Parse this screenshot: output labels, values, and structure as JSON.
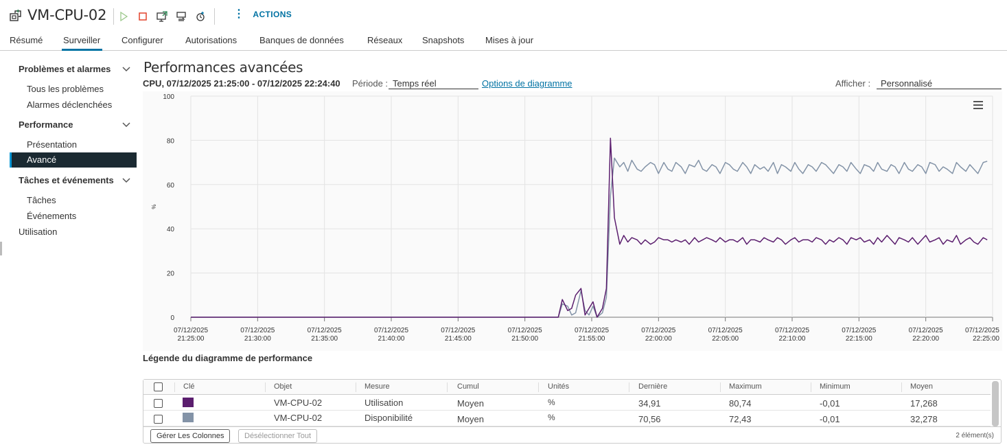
{
  "header": {
    "vm_name": "VM-CPU-02",
    "actions_label": "ACTIONS",
    "toolbar_icons": [
      "power-on-icon",
      "power-off-icon",
      "launch-console-icon",
      "migrate-icon",
      "snapshot-icon"
    ]
  },
  "tabs": [
    {
      "label": "Résumé"
    },
    {
      "label": "Surveiller",
      "active": true
    },
    {
      "label": "Configurer"
    },
    {
      "label": "Autorisations"
    },
    {
      "label": "Banques de données"
    },
    {
      "label": "Réseaux"
    },
    {
      "label": "Snapshots"
    },
    {
      "label": "Mises à jour"
    }
  ],
  "sidebar": {
    "groups": [
      {
        "label": "Problèmes et alarmes",
        "items": [
          "Tous les problèmes",
          "Alarmes déclenchées"
        ]
      },
      {
        "label": "Performance",
        "items": [
          "Présentation",
          "Avancé"
        ],
        "active_item": "Avancé"
      },
      {
        "label": "Tâches et événements",
        "items": [
          "Tâches",
          "Événements"
        ]
      }
    ],
    "plain_item": "Utilisation"
  },
  "main": {
    "title": "Performances avancées",
    "range": "CPU, 07/12/2025 21:25:00 - 07/12/2025 22:24:40",
    "periode_label": "Période :",
    "periode_value": "Temps réel",
    "options_link": "Options de diagramme",
    "afficher_label": "Afficher :",
    "afficher_value": "Personnalisé"
  },
  "chart_data": {
    "type": "line",
    "ylabel": "%",
    "ylim": [
      0,
      100
    ],
    "yticks": [
      "0",
      "20",
      "40",
      "60",
      "80",
      "100"
    ],
    "xticks": [
      [
        "07/12/2025",
        "21:25:00"
      ],
      [
        "07/12/2025",
        "21:30:00"
      ],
      [
        "07/12/2025",
        "21:35:00"
      ],
      [
        "07/12/2025",
        "21:40:00"
      ],
      [
        "07/12/2025",
        "21:45:00"
      ],
      [
        "07/12/2025",
        "21:50:00"
      ],
      [
        "07/12/2025",
        "21:55:00"
      ],
      [
        "07/12/2025",
        "22:00:00"
      ],
      [
        "07/12/2025",
        "22:05:00"
      ],
      [
        "07/12/2025",
        "22:10:00"
      ],
      [
        "07/12/2025",
        "22:15:00"
      ],
      [
        "07/12/2025",
        "22:20:00"
      ],
      [
        "07/12/2025",
        "22:25:00"
      ]
    ],
    "x_minutes_range": [
      0,
      60
    ],
    "series": [
      {
        "name": "Utilisation",
        "color": "#5b1e6e",
        "x": [
          0,
          27.5,
          27.8,
          28.2,
          28.5,
          28.8,
          29.2,
          29.5,
          29.8,
          30.1,
          30.4,
          30.8,
          31.1,
          31.4,
          31.7,
          32.1,
          32.4,
          32.7,
          33.0,
          33.4,
          33.7,
          34.0,
          34.4,
          34.7,
          35.0,
          35.4,
          35.7,
          36.0,
          36.3,
          36.7,
          37.0,
          37.3,
          37.7,
          38.0,
          38.3,
          38.6,
          39.0,
          39.3,
          39.6,
          40.0,
          40.3,
          40.6,
          40.9,
          41.3,
          41.6,
          41.9,
          42.2,
          42.6,
          42.9,
          43.2,
          43.6,
          43.9,
          44.2,
          44.5,
          44.9,
          45.2,
          45.5,
          45.8,
          46.2,
          46.5,
          46.8,
          47.2,
          47.5,
          47.8,
          48.1,
          48.5,
          48.8,
          49.1,
          49.4,
          49.8,
          50.1,
          50.4,
          50.8,
          51.1,
          51.4,
          51.7,
          52.1,
          52.4,
          52.7,
          53.0,
          53.4,
          53.7,
          54.0,
          54.4,
          54.7,
          55.0,
          55.3,
          55.7,
          56.0,
          56.3,
          56.6,
          57.0,
          57.3,
          57.6,
          58.0,
          58.3,
          58.6,
          58.9,
          59.3,
          59.6
        ],
        "values": [
          0,
          0,
          8,
          3,
          4,
          10,
          13,
          1,
          4,
          7,
          0,
          4,
          13,
          81,
          45,
          33,
          37,
          34,
          36,
          35,
          33,
          35,
          33,
          34,
          36,
          35,
          35,
          34,
          35,
          34,
          35,
          33,
          36,
          34,
          35,
          36,
          35,
          34,
          36,
          34,
          35,
          35,
          34,
          36,
          33,
          35,
          35,
          34,
          36,
          35,
          34,
          36,
          35,
          33,
          35,
          36,
          34,
          35,
          35,
          34,
          36,
          35,
          33,
          35,
          34,
          36,
          35,
          33,
          36,
          35,
          36,
          34,
          35,
          33,
          36,
          34,
          37,
          35,
          33,
          36,
          35,
          34,
          36,
          33,
          35,
          37,
          34,
          35,
          36,
          33,
          35,
          34,
          37,
          33,
          35,
          36,
          34,
          33,
          36,
          35
        ]
      },
      {
        "name": "Disponibilité",
        "color": "#8393a7",
        "x": [
          0,
          27.5,
          27.8,
          28.2,
          28.5,
          28.8,
          29.2,
          29.5,
          29.8,
          30.1,
          30.4,
          30.8,
          31.1,
          31.4,
          31.7,
          32.1,
          32.4,
          32.7,
          33.0,
          33.4,
          33.7,
          34.0,
          34.4,
          34.7,
          35.0,
          35.4,
          35.7,
          36.0,
          36.3,
          36.7,
          37.0,
          37.3,
          37.7,
          38.0,
          38.3,
          38.6,
          39.0,
          39.3,
          39.6,
          40.0,
          40.3,
          40.6,
          40.9,
          41.3,
          41.6,
          41.9,
          42.2,
          42.6,
          42.9,
          43.2,
          43.6,
          43.9,
          44.2,
          44.5,
          44.9,
          45.2,
          45.5,
          45.8,
          46.2,
          46.5,
          46.8,
          47.2,
          47.5,
          47.8,
          48.1,
          48.5,
          48.8,
          49.1,
          49.4,
          49.8,
          50.1,
          50.4,
          50.8,
          51.1,
          51.4,
          51.7,
          52.1,
          52.4,
          52.7,
          53.0,
          53.4,
          53.7,
          54.0,
          54.4,
          54.7,
          55.0,
          55.3,
          55.7,
          56.0,
          56.3,
          56.6,
          57.0,
          57.3,
          57.6,
          58.0,
          58.3,
          58.6,
          58.9,
          59.3,
          59.6
        ],
        "values": [
          0,
          0,
          6,
          5,
          1,
          2,
          12,
          3,
          1,
          5,
          0,
          2,
          9,
          55,
          72,
          68,
          70,
          66,
          71,
          67,
          66,
          68,
          70,
          69,
          65,
          70,
          67,
          66,
          70,
          68,
          65,
          69,
          68,
          71,
          67,
          66,
          69,
          68,
          65,
          70,
          69,
          67,
          66,
          70,
          68,
          65,
          69,
          67,
          68,
          66,
          70,
          65,
          69,
          68,
          66,
          70,
          67,
          65,
          69,
          68,
          66,
          70,
          69,
          67,
          65,
          69,
          68,
          66,
          70,
          67,
          65,
          69,
          68,
          66,
          70,
          67,
          66,
          69,
          68,
          65,
          70,
          67,
          66,
          69,
          68,
          65,
          70,
          69,
          66,
          68,
          67,
          65,
          70,
          68,
          66,
          69,
          67,
          65,
          70,
          70.56
        ]
      }
    ]
  },
  "legend": {
    "title": "Légende du diagramme de performance",
    "columns": [
      "Clé",
      "Objet",
      "Mesure",
      "Cumul",
      "Unités",
      "Dernière",
      "Maximum",
      "Minimum",
      "Moyen"
    ],
    "rows": [
      {
        "color": "#5b1e6e",
        "objet": "VM-CPU-02",
        "mesure": "Utilisation",
        "cumul": "Moyen",
        "unites": "%",
        "derniere": "34,91",
        "maximum": "80,74",
        "minimum": "-0,01",
        "moyen": "17,268"
      },
      {
        "color": "#8393a7",
        "objet": "VM-CPU-02",
        "mesure": "Disponibilité",
        "cumul": "Moyen",
        "unites": "%",
        "derniere": "70,56",
        "maximum": "72,43",
        "minimum": "-0,01",
        "moyen": "32,278"
      }
    ],
    "btn_manage": "Gérer Les Colonnes",
    "btn_deselect": "Désélectionner Tout",
    "count": "2 élément(s)"
  }
}
